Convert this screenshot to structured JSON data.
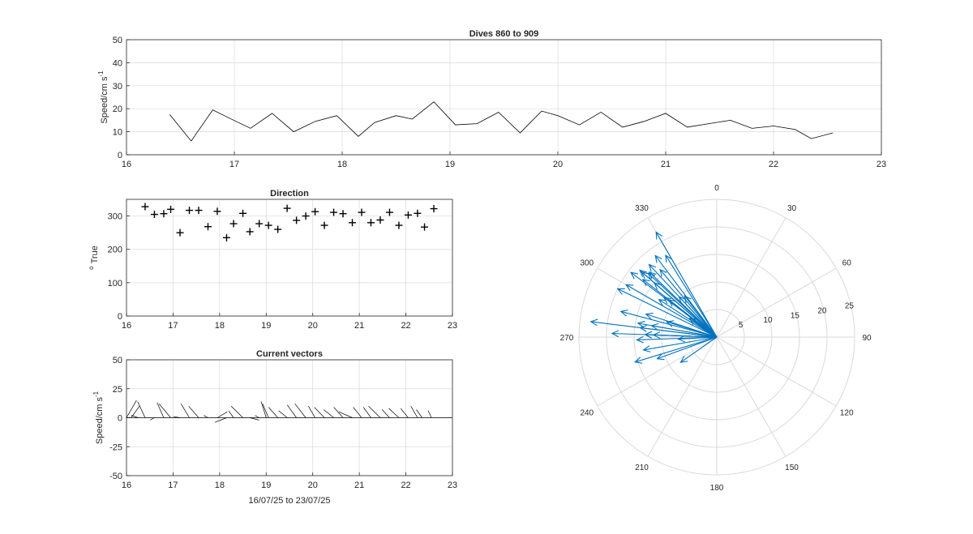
{
  "figure": {
    "speed_panel": {
      "title": "Dives 860 to 909",
      "ylabel": "Speed/cm s",
      "ylabel_sup": "-1"
    },
    "direction_panel": {
      "title": "Direction",
      "ylabel_sup": "o",
      "ylabel": "True"
    },
    "vector_panel": {
      "title": "Current vectors",
      "ylabel": "Speed/cm s",
      "ylabel_sup": "-1",
      "xlabel": "16/07/25 to 23/07/25"
    },
    "polar_panel": {
      "angle_labels": [
        "0",
        "30",
        "60",
        "90",
        "120",
        "150",
        "180",
        "210",
        "240",
        "270",
        "300",
        "330"
      ],
      "radius_labels": [
        "5",
        "10",
        "15",
        "20",
        "25"
      ]
    }
  },
  "colors": {
    "vector_blue": "#0072BD",
    "line_black": "#000000",
    "grid": "#d9d9d9"
  },
  "chart_data": [
    {
      "type": "line",
      "title": "Dives 860 to 909",
      "ylabel": "Speed/cm s-1",
      "xlim": [
        16,
        23
      ],
      "ylim": [
        0,
        50
      ],
      "xticks": [
        16,
        17,
        18,
        19,
        20,
        21,
        22,
        23
      ],
      "yticks": [
        0,
        10,
        20,
        30,
        40,
        50
      ],
      "grid": true,
      "x": [
        16.4,
        16.6,
        16.8,
        16.95,
        17.15,
        17.35,
        17.55,
        17.75,
        17.95,
        18.15,
        18.3,
        18.5,
        18.65,
        18.85,
        19.05,
        19.25,
        19.45,
        19.65,
        19.85,
        20.0,
        20.2,
        20.4,
        20.6,
        20.8,
        21.0,
        21.2,
        21.4,
        21.6,
        21.8,
        22.0,
        22.2,
        22.35,
        22.55
      ],
      "y": [
        17.5,
        6,
        19.5,
        16,
        11.5,
        18,
        10,
        14.5,
        17,
        8,
        14,
        17,
        15.5,
        23,
        13,
        13.5,
        18.5,
        9.5,
        19,
        17,
        13,
        18.5,
        12,
        14.5,
        18,
        12,
        13.5,
        15,
        11.5,
        12.5,
        11,
        7,
        9.5
      ]
    },
    {
      "type": "scatter",
      "title": "Direction",
      "ylabel": "o True",
      "xlim": [
        16,
        23
      ],
      "ylim": [
        0,
        350
      ],
      "xticks": [
        16,
        17,
        18,
        19,
        20,
        21,
        22,
        23
      ],
      "yticks": [
        0,
        100,
        200,
        300
      ],
      "grid": true,
      "marker": "+",
      "x": [
        16.4,
        16.6,
        16.8,
        16.95,
        17.15,
        17.35,
        17.55,
        17.75,
        17.95,
        18.15,
        18.3,
        18.5,
        18.65,
        18.85,
        19.05,
        19.25,
        19.45,
        19.65,
        19.85,
        20.05,
        20.25,
        20.45,
        20.65,
        20.85,
        21.05,
        21.25,
        21.45,
        21.65,
        21.85,
        22.05,
        22.25,
        22.4,
        22.6
      ],
      "y": [
        328,
        305,
        307,
        320,
        250,
        317,
        317,
        268,
        314,
        235,
        277,
        308,
        253,
        277,
        272,
        260,
        323,
        287,
        300,
        313,
        272,
        311,
        307,
        280,
        311,
        280,
        288,
        311,
        272,
        303,
        308,
        267,
        322
      ]
    },
    {
      "type": "line",
      "subtype": "feather",
      "title": "Current vectors",
      "ylabel": "Speed/cm s-1",
      "xlabel": "16/07/25 to 23/07/25",
      "xlim": [
        16,
        23
      ],
      "ylim": [
        -50,
        50
      ],
      "xticks": [
        16,
        17,
        18,
        19,
        20,
        21,
        22,
        23
      ],
      "yticks": [
        -50,
        -25,
        0,
        25,
        50
      ],
      "grid": true,
      "x": [
        16.0,
        16.1,
        16.25,
        16.4,
        16.6,
        16.8,
        16.95,
        17.15,
        17.35,
        17.55,
        17.75,
        17.95,
        18.15,
        18.3,
        18.5,
        18.65,
        18.85,
        19.0,
        19.05,
        19.25,
        19.45,
        19.65,
        19.85,
        20.05,
        20.25,
        20.45,
        20.65,
        20.85,
        21.05,
        21.25,
        21.45,
        21.65,
        21.85,
        22.05,
        22.25,
        22.35,
        22.55
      ],
      "u": [
        12,
        10,
        -8,
        -9,
        -5,
        -8,
        -14,
        -8,
        -10,
        -12,
        -5,
        12,
        -14,
        -6,
        -14,
        11,
        -5,
        -6,
        -7,
        -11,
        -10,
        -11,
        -13,
        -8,
        -12,
        -12,
        -11,
        -16,
        -10,
        -9,
        -14,
        -9,
        -12,
        -9,
        -8,
        -7,
        -4
      ],
      "v": [
        15,
        10,
        2,
        14,
        -2,
        13,
        12,
        1,
        12,
        10,
        2,
        5,
        -4,
        6,
        10,
        -2,
        2,
        14,
        12,
        9,
        6,
        11,
        12,
        10,
        9,
        7,
        9,
        5,
        9,
        9,
        10,
        7,
        8,
        8,
        10,
        7,
        6
      ]
    },
    {
      "type": "line",
      "subtype": "polar-compass",
      "rlim": [
        0,
        25
      ],
      "rticks": [
        5,
        10,
        15,
        20,
        25
      ],
      "thetaticks": [
        0,
        30,
        60,
        90,
        120,
        150,
        180,
        210,
        240,
        270,
        300,
        330
      ],
      "theta_zero": "top",
      "theta_direction": "clockwise",
      "color": "#0072BD",
      "direction_deg": [
        328,
        305,
        307,
        320,
        250,
        317,
        317,
        268,
        314,
        235,
        277,
        308,
        253,
        277,
        272,
        260,
        323,
        287,
        300,
        313,
        272,
        311,
        307,
        280,
        311,
        280,
        288,
        311,
        272,
        303,
        308,
        267,
        322,
        272,
        330,
        296,
        285
      ],
      "speed": [
        17.5,
        6,
        19.5,
        16,
        11.5,
        18,
        10,
        14.5,
        17,
        8,
        14,
        17,
        15.5,
        23,
        13,
        13.5,
        18.5,
        9.5,
        19,
        17,
        13,
        18.5,
        12,
        14.5,
        18,
        12,
        13.5,
        15,
        11.5,
        12.5,
        11,
        7,
        9.5,
        19,
        22,
        20,
        18
      ]
    }
  ]
}
